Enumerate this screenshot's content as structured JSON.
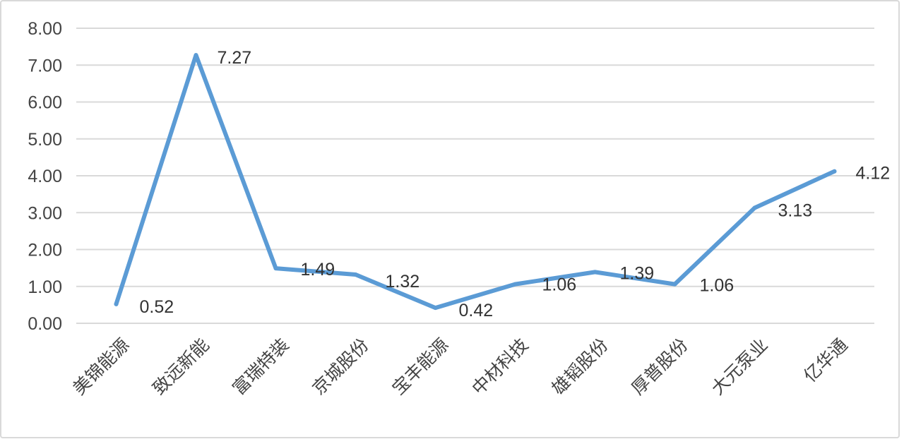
{
  "chart_data": {
    "type": "line",
    "categories": [
      "美锦能源",
      "致远新能",
      "富瑞特装",
      "京城股份",
      "宝丰能源",
      "中材科技",
      "雄韬股份",
      "厚普股份",
      "大元泵业",
      "亿华通"
    ],
    "values": [
      0.52,
      7.27,
      1.49,
      1.32,
      0.42,
      1.06,
      1.39,
      1.06,
      3.13,
      4.12
    ],
    "data_labels": [
      "0.52",
      "7.27",
      "1.49",
      "1.32",
      "0.42",
      "1.06",
      "1.39",
      "1.06",
      "3.13",
      "4.12"
    ],
    "y_ticks": [
      "0.00",
      "1.00",
      "2.00",
      "3.00",
      "4.00",
      "5.00",
      "6.00",
      "7.00",
      "8.00"
    ],
    "ylim": [
      0,
      8
    ],
    "grid": true,
    "legend": "none",
    "title": "",
    "xlabel": "",
    "ylabel": "",
    "colors": {
      "line": "#5b9bd5",
      "grid": "#d9d9d9",
      "text": "#444444"
    }
  }
}
